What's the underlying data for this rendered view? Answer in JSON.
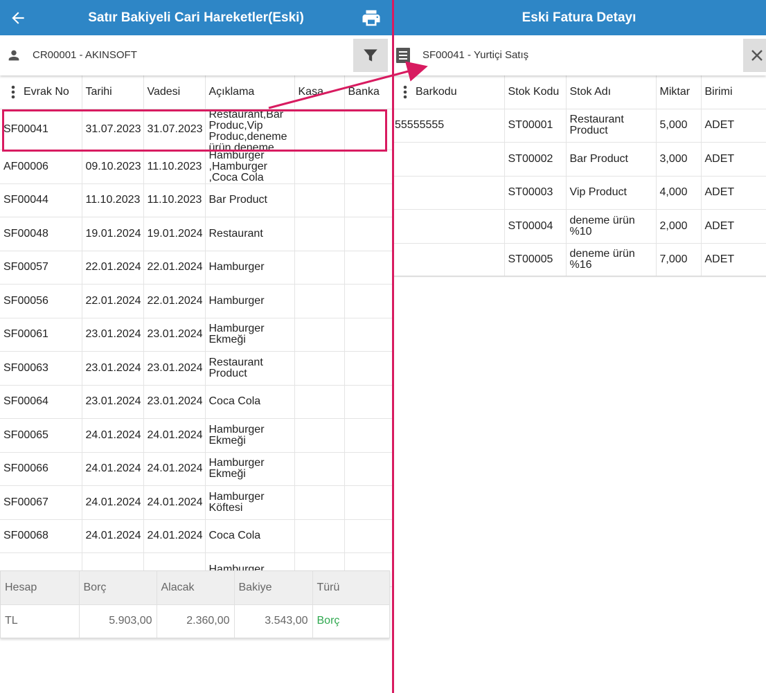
{
  "left": {
    "title": "Satır Bakiyeli Cari Hareketler(Eski)",
    "account": "CR00001 - AKINSOFT",
    "columns": [
      "Evrak No",
      "Tarihi",
      "Vadesi",
      "Açıklama",
      "Kasa",
      "Banka"
    ],
    "rows": [
      {
        "evrak": "SF00041",
        "tarih": "31.07.2023",
        "vade": "31.07.2023",
        "aciklama": "Restaurant,Bar Produc,Vip Produc,deneme ürün,deneme ürün"
      },
      {
        "evrak": "AF00006",
        "tarih": "09.10.2023",
        "vade": "11.10.2023",
        "aciklama": "Hamburger ,Hamburger ,Coca Cola"
      },
      {
        "evrak": "SF00044",
        "tarih": "11.10.2023",
        "vade": "11.10.2023",
        "aciklama": "Bar Product"
      },
      {
        "evrak": "SF00048",
        "tarih": "19.01.2024",
        "vade": "19.01.2024",
        "aciklama": "Restaurant"
      },
      {
        "evrak": "SF00057",
        "tarih": "22.01.2024",
        "vade": "22.01.2024",
        "aciklama": "Hamburger"
      },
      {
        "evrak": "SF00056",
        "tarih": "22.01.2024",
        "vade": "22.01.2024",
        "aciklama": "Hamburger"
      },
      {
        "evrak": "SF00061",
        "tarih": "23.01.2024",
        "vade": "23.01.2024",
        "aciklama": "Hamburger Ekmeği"
      },
      {
        "evrak": "SF00063",
        "tarih": "23.01.2024",
        "vade": "23.01.2024",
        "aciklama": "Restaurant Product"
      },
      {
        "evrak": "SF00064",
        "tarih": "23.01.2024",
        "vade": "23.01.2024",
        "aciklama": "Coca Cola"
      },
      {
        "evrak": "SF00065",
        "tarih": "24.01.2024",
        "vade": "24.01.2024",
        "aciklama": "Hamburger Ekmeği"
      },
      {
        "evrak": "SF00066",
        "tarih": "24.01.2024",
        "vade": "24.01.2024",
        "aciklama": "Hamburger Ekmeği"
      },
      {
        "evrak": "SF00067",
        "tarih": "24.01.2024",
        "vade": "24.01.2024",
        "aciklama": "Hamburger Köftesi"
      },
      {
        "evrak": "SF00068",
        "tarih": "24.01.2024",
        "vade": "24.01.2024",
        "aciklama": "Coca Cola"
      },
      {
        "evrak": "",
        "tarih": "",
        "vade": "",
        "aciklama": "Hamburger"
      }
    ],
    "summary": {
      "columns": [
        "Hesap",
        "Borç",
        "Alacak",
        "Bakiye",
        "Türü"
      ],
      "row": {
        "hesap": "TL",
        "borc": "5.903,00",
        "alacak": "2.360,00",
        "bakiye": "3.543,00",
        "turu": "Borç"
      }
    }
  },
  "right": {
    "title": "Eski Fatura Detayı",
    "document": "SF00041 - Yurtiçi Satış",
    "columns": [
      "Barkodu",
      "Stok Kodu",
      "Stok Adı",
      "Miktar",
      "Birimi"
    ],
    "rows": [
      {
        "barkod": "55555555",
        "stok_kodu": "ST00001",
        "stok_adi": "Restaurant Product",
        "miktar": "5,000",
        "birim": "ADET"
      },
      {
        "barkod": "",
        "stok_kodu": "ST00002",
        "stok_adi": "Bar Product",
        "miktar": "3,000",
        "birim": "ADET"
      },
      {
        "barkod": "",
        "stok_kodu": "ST00003",
        "stok_adi": "Vip Product",
        "miktar": "4,000",
        "birim": "ADET"
      },
      {
        "barkod": "",
        "stok_kodu": "ST00004",
        "stok_adi": "deneme ürün %10",
        "miktar": "2,000",
        "birim": "ADET"
      },
      {
        "barkod": "",
        "stok_kodu": "ST00005",
        "stok_adi": "deneme ürün %16",
        "miktar": "7,000",
        "birim": "ADET"
      }
    ]
  },
  "colors": {
    "appbar": "#2e86c6",
    "annotation": "#d81b60",
    "type_text": "#2fa84f"
  },
  "icons": [
    "back-arrow-icon",
    "printer-icon",
    "person-icon",
    "filter-icon",
    "document-list-icon",
    "close-icon",
    "kebab-menu-icon"
  ]
}
